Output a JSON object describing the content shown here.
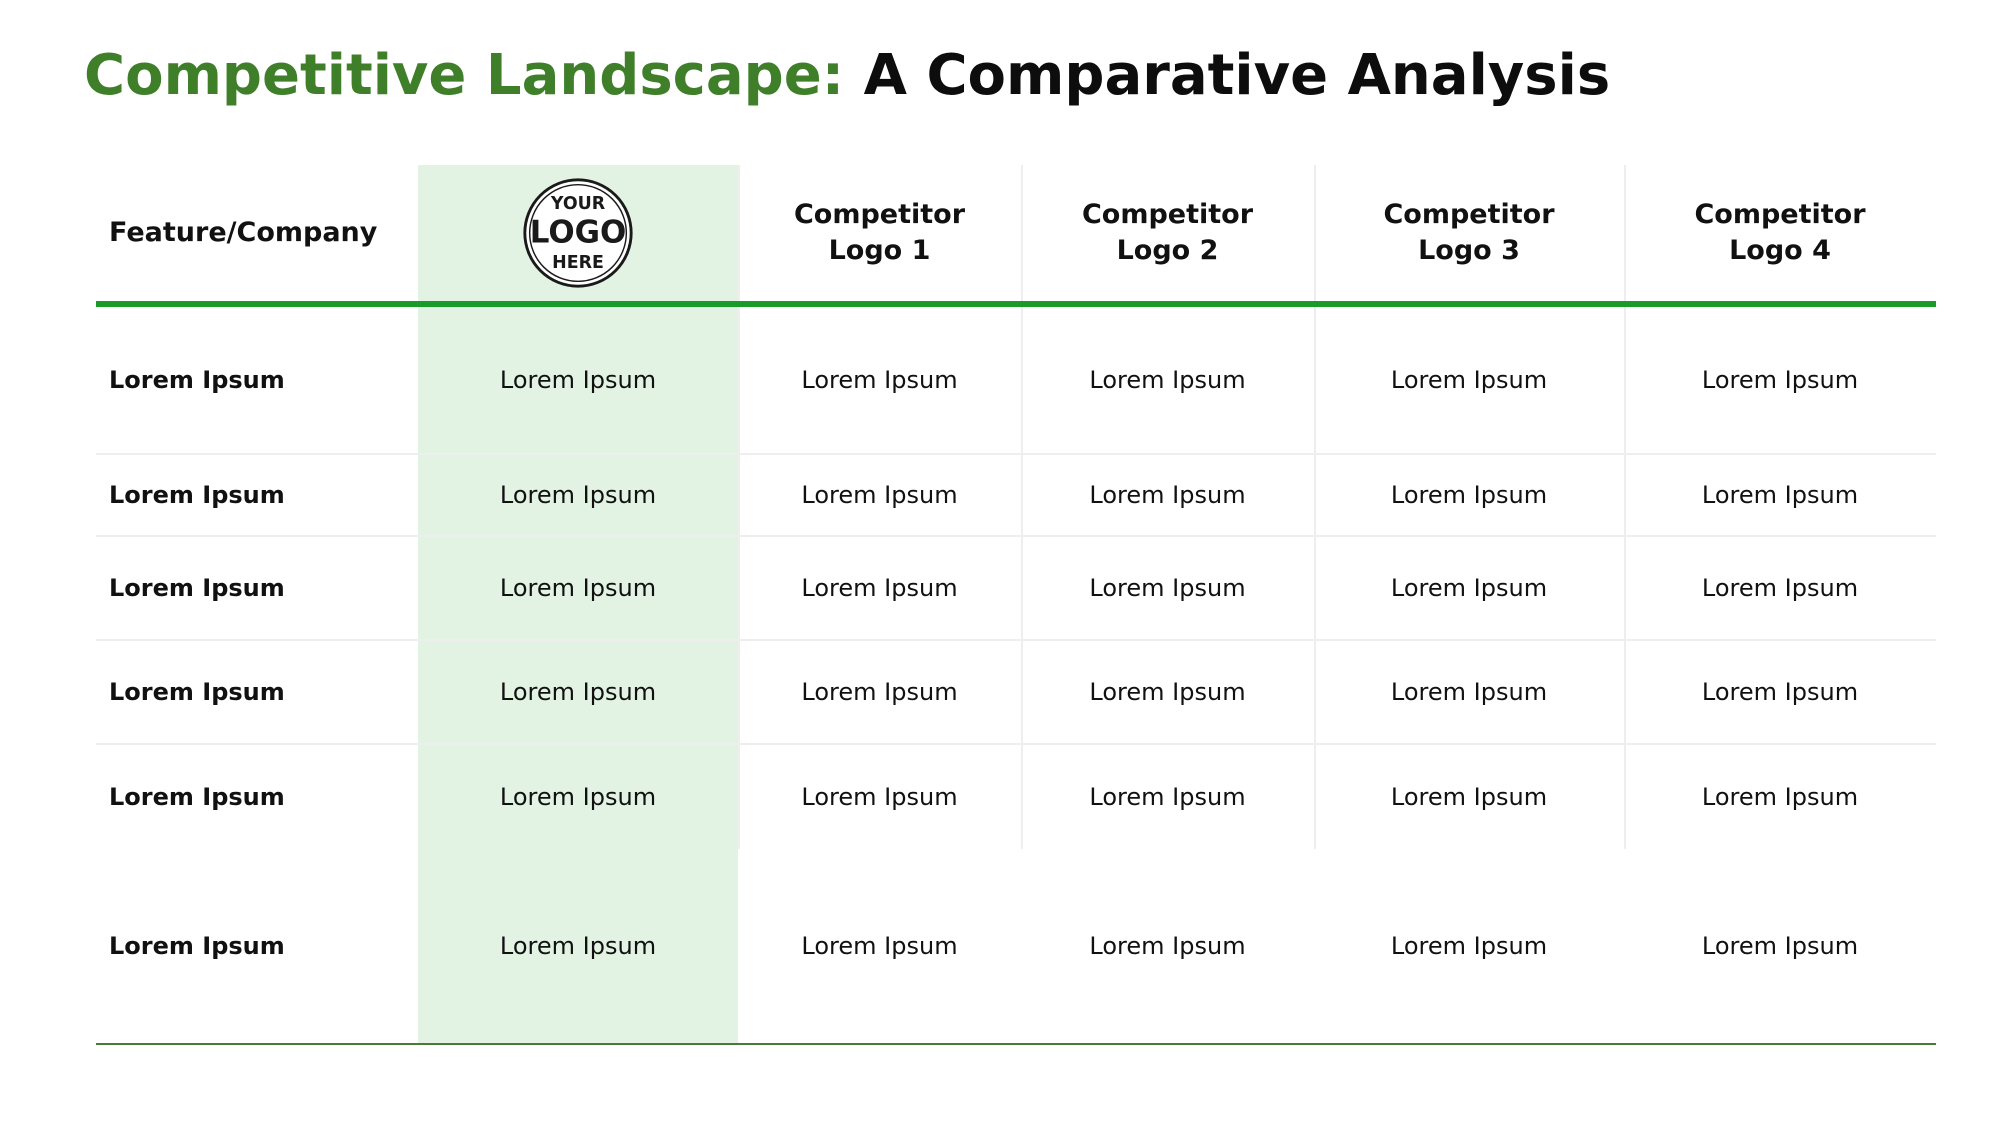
{
  "title": {
    "accent": "Competitive Landscape:",
    "rest": " A Comparative Analysis"
  },
  "logo": {
    "top_text": "YOUR",
    "middle_text": "LOGO",
    "bottom_text": "HERE",
    "icon": "logo-placeholder-badge"
  },
  "columns": [
    "Feature/Company",
    "",
    "Competitor Logo 1",
    "Competitor Logo 2",
    "Competitor Logo 3",
    "Competitor Logo 4"
  ],
  "header_lines": {
    "c2": [
      "Competitor",
      "Logo 1"
    ],
    "c3": [
      "Competitor",
      "Logo 2"
    ],
    "c4": [
      "Competitor",
      "Logo 3"
    ],
    "c5": [
      "Competitor",
      "Logo 4"
    ]
  },
  "rows": [
    [
      "Lorem Ipsum",
      "Lorem Ipsum",
      "Lorem Ipsum",
      "Lorem Ipsum",
      "Lorem Ipsum",
      "Lorem Ipsum"
    ],
    [
      "Lorem Ipsum",
      "Lorem Ipsum",
      "Lorem Ipsum",
      "Lorem Ipsum",
      "Lorem Ipsum",
      "Lorem Ipsum"
    ],
    [
      "Lorem Ipsum",
      "Lorem Ipsum",
      "Lorem Ipsum",
      "Lorem Ipsum",
      "Lorem Ipsum",
      "Lorem Ipsum"
    ],
    [
      "Lorem Ipsum",
      "Lorem Ipsum",
      "Lorem Ipsum",
      "Lorem Ipsum",
      "Lorem Ipsum",
      "Lorem Ipsum"
    ],
    [
      "Lorem Ipsum",
      "Lorem Ipsum",
      "Lorem Ipsum",
      "Lorem Ipsum",
      "Lorem Ipsum",
      "Lorem Ipsum"
    ],
    [
      "Lorem Ipsum",
      "Lorem Ipsum",
      "Lorem Ipsum",
      "Lorem Ipsum",
      "Lorem Ipsum",
      "Lorem Ipsum"
    ]
  ],
  "colors": {
    "title_accent": "#3f7f2a",
    "header_rule": "#1a9a2a",
    "highlight_column": "#e3f3e3"
  }
}
